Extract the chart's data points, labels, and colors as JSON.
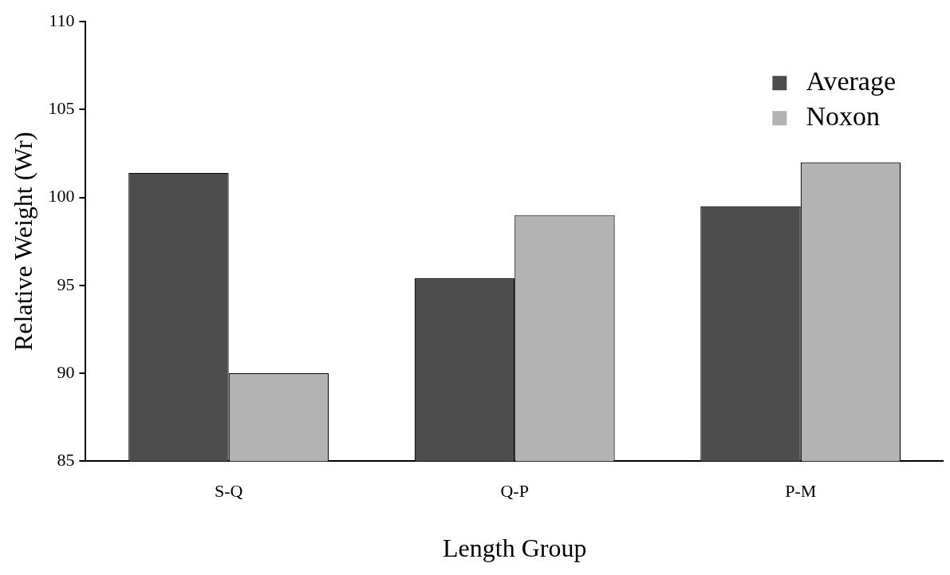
{
  "chart_data": {
    "type": "bar",
    "xlabel": "Length Group",
    "ylabel": "Relative Weight (Wr)",
    "categories": [
      "S-Q",
      "Q-P",
      "P-M"
    ],
    "series": [
      {
        "name": "Average",
        "color": "#4d4d4d",
        "values": [
          101.4,
          95.4,
          99.5
        ]
      },
      {
        "name": "Noxon",
        "color": "#b3b3b3",
        "values": [
          90,
          99,
          102
        ]
      }
    ],
    "ylim": [
      85,
      110
    ],
    "yticks": [
      85,
      90,
      95,
      100,
      105,
      110
    ],
    "grid": false,
    "legend": "top right"
  }
}
